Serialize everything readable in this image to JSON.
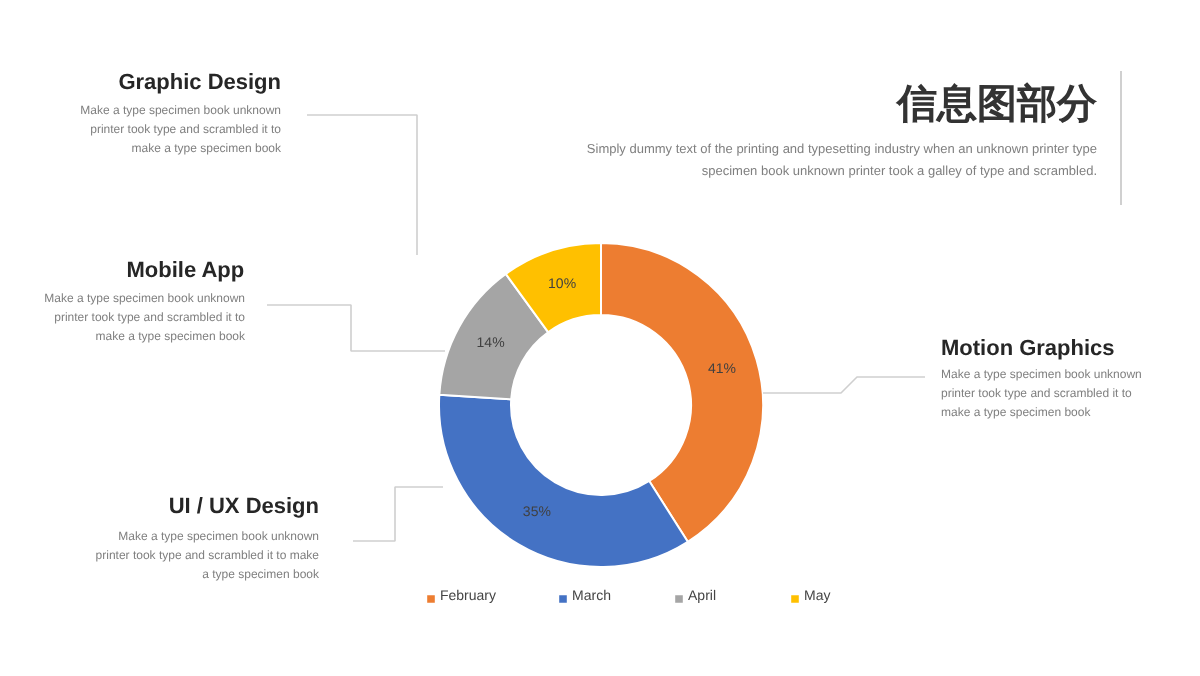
{
  "chart_data": {
    "type": "donut",
    "title": "信息图部分",
    "subtitle": "Simply dummy text of the printing and typesetting industry when an unknown printer type\nspecimen book unknown printer took a galley of type and scrambled.",
    "categories": [
      "February",
      "March",
      "April",
      "May"
    ],
    "values": [
      41,
      35,
      14,
      10
    ],
    "colors": [
      "#ed7d31",
      "#4472c4",
      "#a5a5a5",
      "#ffc000"
    ],
    "value_labels": [
      "41%",
      "35%",
      "14%",
      "10%"
    ],
    "legend": "bottom",
    "annotations": [
      "Graphic Design",
      "Make a type specimen book unknown\nprinter took type and scrambled it to\nmake a type specimen book",
      "Mobile App",
      "Make a type specimen book unknown\nprinter took type and scrambled it to\nmake a type specimen book",
      "UI / UX Design",
      "Make a type specimen book unknown\nprinter took type and scrambled it to make\na type specimen book",
      "Motion Graphics",
      "Make a type specimen book unknown\nprinter took type and scrambled it to\nmake a type specimen book"
    ]
  }
}
